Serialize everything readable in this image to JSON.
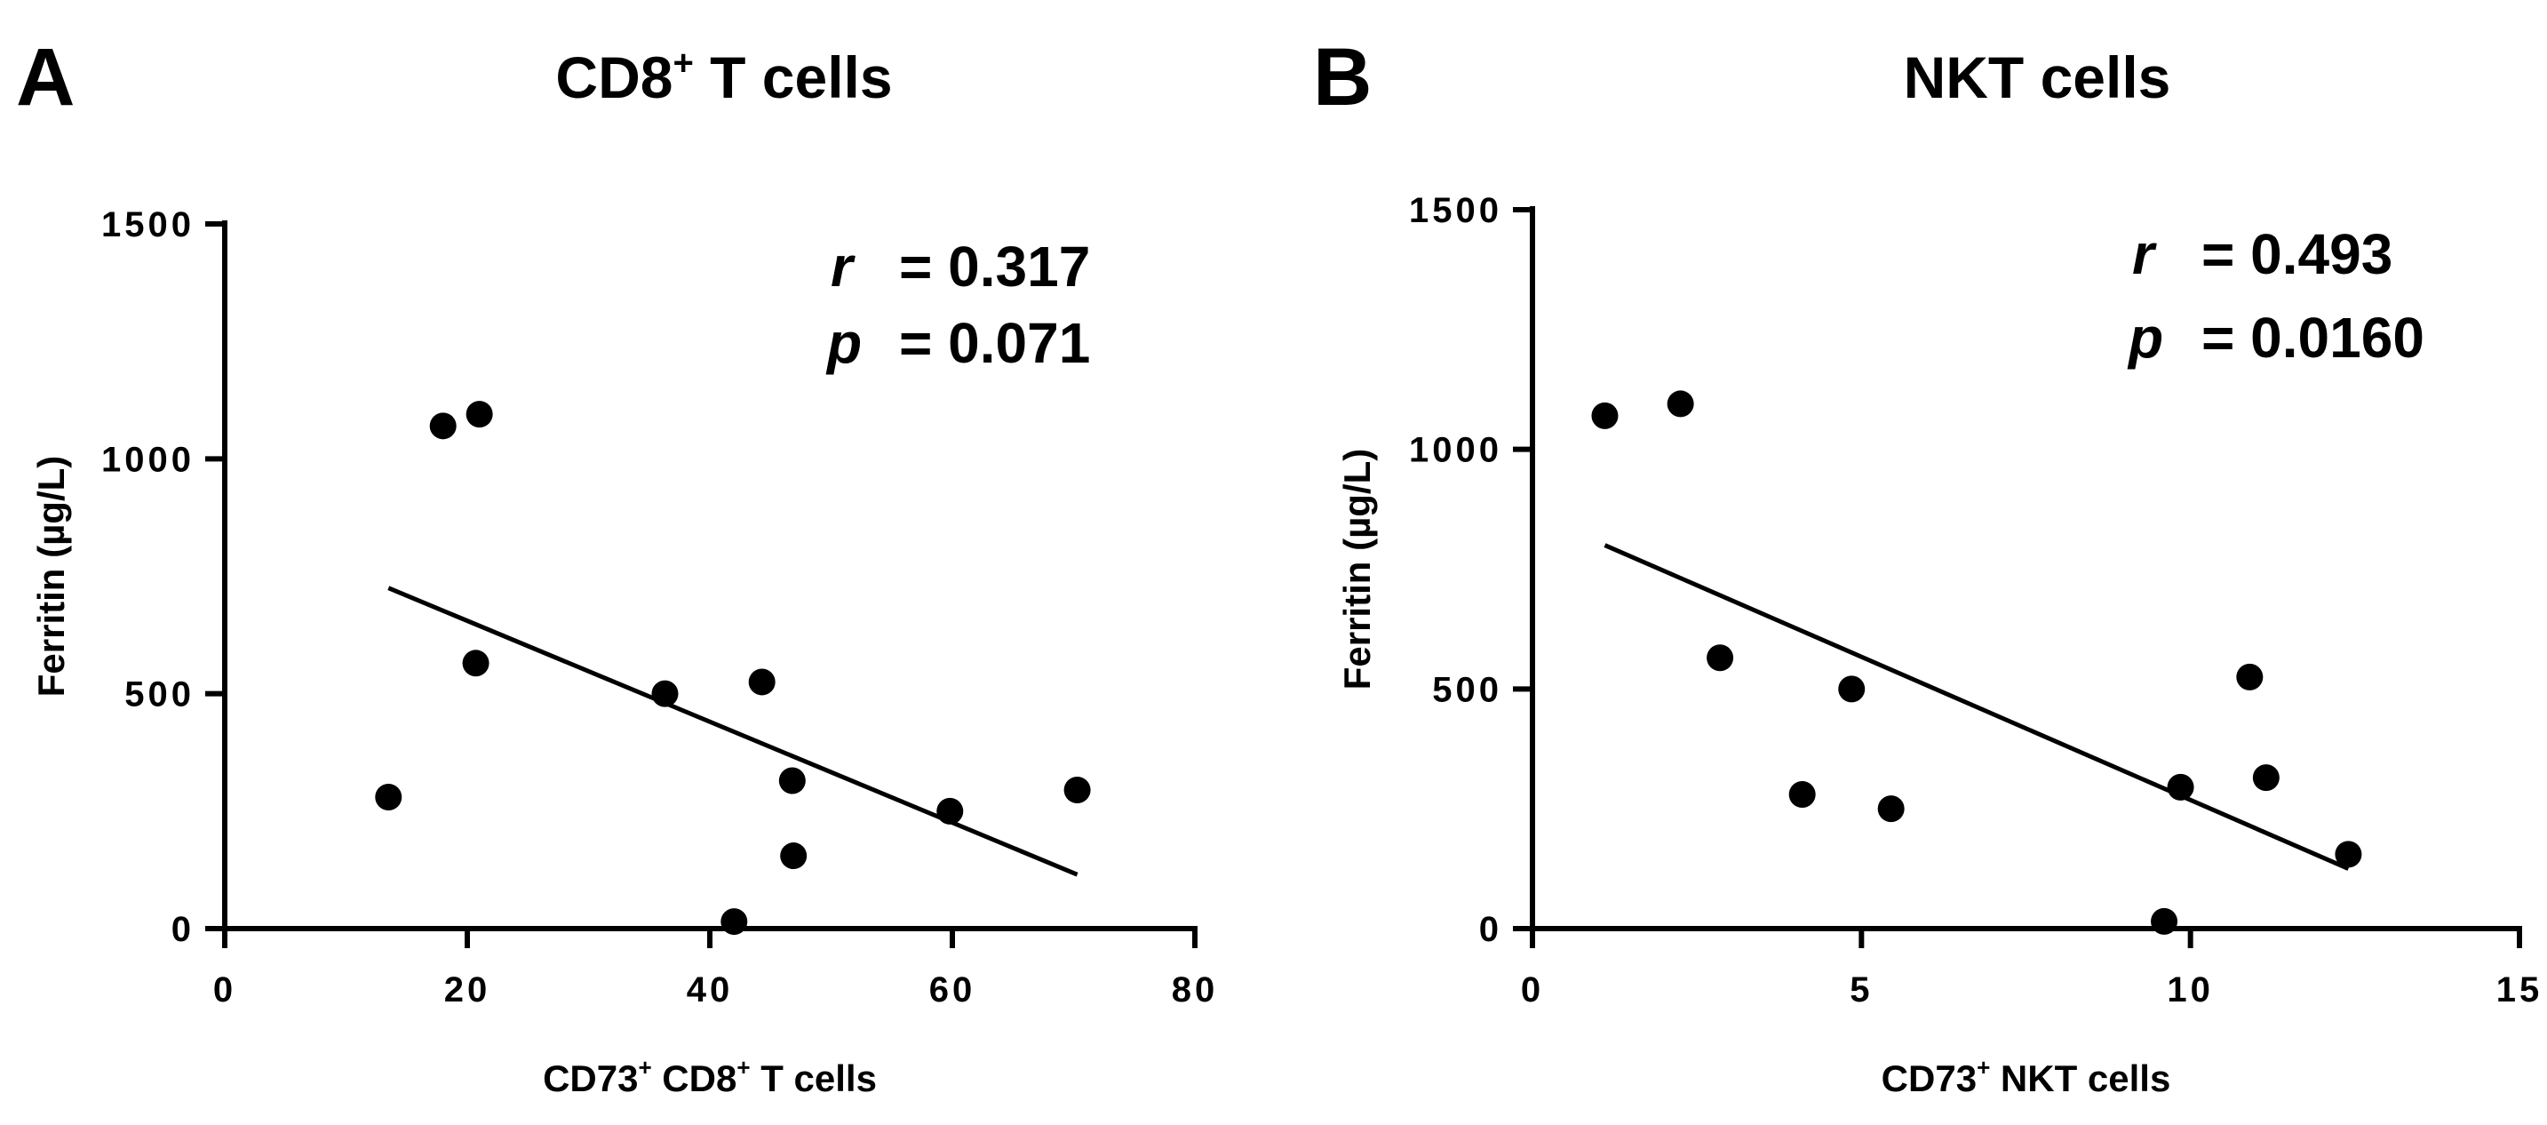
{
  "chart_data": [
    {
      "type": "scatter",
      "panel_letter": "A",
      "title": "CD8",
      "title_sup": "+",
      "title_rest": " T cells",
      "xlabel_parts": [
        {
          "text": "CD73",
          "sup": false
        },
        {
          "text": "+",
          "sup": true
        },
        {
          "text": " CD8",
          "sup": false
        },
        {
          "text": "+",
          "sup": true
        },
        {
          "text": " T cells",
          "sup": false
        }
      ],
      "ylabel": "Ferritin (µg/L)",
      "xlim": [
        0,
        80
      ],
      "ylim": [
        0,
        1500
      ],
      "xticks": [
        0,
        20,
        40,
        60,
        80
      ],
      "yticks": [
        0,
        500,
        1000,
        1500
      ],
      "x": [
        13.5,
        18,
        21,
        20.7,
        36.3,
        44.3,
        46.8,
        46.9,
        42,
        59.8,
        70.3
      ],
      "y": [
        280,
        1070,
        1095,
        565,
        500,
        525,
        315,
        155,
        15,
        250,
        295
      ],
      "regression": {
        "x": [
          13.5,
          70.3
        ],
        "y": [
          725,
          115
        ]
      },
      "stats": {
        "r_label": "r",
        "r_value": "= 0.317",
        "p_label": "p",
        "p_value": "= 0.071"
      }
    },
    {
      "type": "scatter",
      "panel_letter": "B",
      "title": "NKT cells",
      "title_sup": "",
      "title_rest": "",
      "xlabel_parts": [
        {
          "text": "CD73",
          "sup": false
        },
        {
          "text": "+",
          "sup": true
        },
        {
          "text": " NKT cells",
          "sup": false
        }
      ],
      "ylabel": "Ferritin (µg/L)",
      "xlim": [
        0,
        15
      ],
      "ylim": [
        0,
        1500
      ],
      "xticks": [
        0,
        5,
        10,
        15
      ],
      "yticks": [
        0,
        500,
        1000,
        1500
      ],
      "x": [
        1.1,
        2.25,
        2.85,
        4.1,
        4.85,
        5.45,
        9.6,
        9.85,
        10.9,
        11.15,
        12.4
      ],
      "y": [
        1070,
        1095,
        565,
        280,
        500,
        250,
        15,
        295,
        525,
        315,
        155
      ],
      "regression": {
        "x": [
          1.1,
          12.4
        ],
        "y": [
          800,
          125
        ]
      },
      "stats": {
        "r_label": "r",
        "r_value": "= 0.493",
        "p_label": "p",
        "p_value": "= 0.0160"
      }
    }
  ]
}
